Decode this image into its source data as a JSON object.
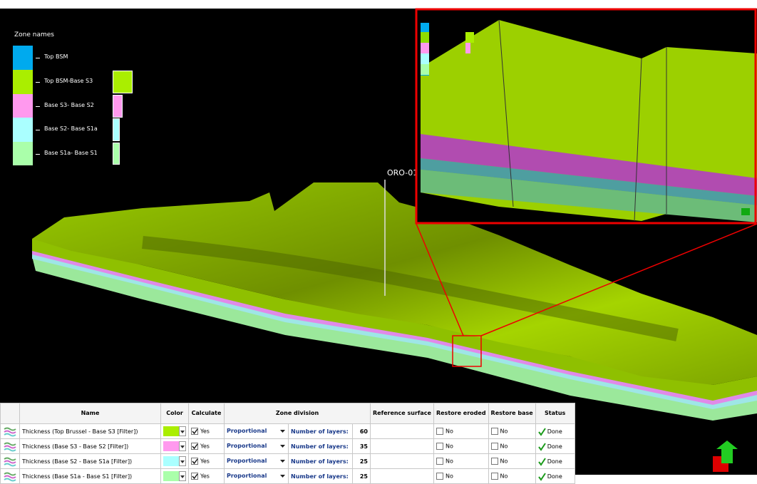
{
  "legend": {
    "title": "Zone names",
    "zones": [
      {
        "name": "Top BSM",
        "color": "#00aaee"
      },
      {
        "name": "Top BSM-Base S3",
        "color": "#aaee00"
      },
      {
        "name": "Base S3- Base S2",
        "color": "#ff99ee"
      },
      {
        "name": "Base S2- Base S1a",
        "color": "#aaffff"
      },
      {
        "name": "Base S1a- Base S1",
        "color": "#aaffaa"
      }
    ]
  },
  "well_label": "ORO-01",
  "table": {
    "headers": [
      "Name",
      "Color",
      "Calculate",
      "Zone division",
      "Reference surface",
      "Restore eroded",
      "Restore base",
      "Status"
    ],
    "rows": [
      {
        "name": "Thickness (Top Brussel - Base S3 [Filter])",
        "color": "#aaee00",
        "calculate": "Yes",
        "method": "Proportional",
        "division": "Number of layers:",
        "layers": 60,
        "restore_eroded": "No",
        "restore_base": "No",
        "status": "Done"
      },
      {
        "name": "Thickness (Base S3 - Base S2 [Filter])",
        "color": "#ff99ee",
        "calculate": "Yes",
        "method": "Proportional",
        "division": "Number of layers:",
        "layers": 35,
        "restore_eroded": "No",
        "restore_base": "No",
        "status": "Done"
      },
      {
        "name": "Thickness (Base S2 - Base S1a [Filter])",
        "color": "#aaffff",
        "calculate": "Yes",
        "method": "Proportional",
        "division": "Number of layers:",
        "layers": 25,
        "restore_eroded": "No",
        "restore_base": "No",
        "status": "Done"
      },
      {
        "name": "Thickness (Base S1a - Base S1 [Filter])",
        "color": "#aaffaa",
        "calculate": "Yes",
        "method": "Proportional",
        "division": "Number of layers:",
        "layers": 25,
        "restore_eroded": "No",
        "restore_base": "No",
        "status": "Done"
      }
    ]
  }
}
